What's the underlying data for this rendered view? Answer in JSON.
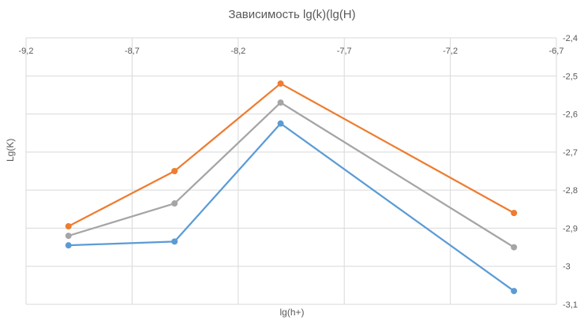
{
  "chart_data": {
    "type": "line",
    "title": "Зависимость lg(k)(lg(H)",
    "xlabel": "lg(h+)",
    "ylabel": "Lg(K)",
    "x": [
      -9.0,
      -8.5,
      -8.0,
      -6.9
    ],
    "xlim": [
      -9.2,
      -6.7
    ],
    "ylim": [
      -3.1,
      -2.4
    ],
    "x_ticks": [
      -9.2,
      -8.7,
      -8.2,
      -7.7,
      -7.2,
      -6.7
    ],
    "x_tick_labels": [
      "-9,2",
      "-8,7",
      "-8,2",
      "-7,7",
      "-7,2",
      "-6,7"
    ],
    "y_ticks": [
      -2.4,
      -2.5,
      -2.6,
      -2.7,
      -2.8,
      -2.9,
      -3.0,
      -3.1
    ],
    "y_tick_labels": [
      "-2,4",
      "-2,5",
      "-2,6",
      "-2,7",
      "-2,8",
      "-2,9",
      "-3",
      "-3,1"
    ],
    "x_axis_position": "top",
    "y_axis_position": "right",
    "grid": true,
    "legend": "none",
    "series": [
      {
        "color": "#5B9BD5",
        "values": [
          -2.945,
          -2.935,
          -2.625,
          -3.065
        ]
      },
      {
        "color": "#ED7D31",
        "values": [
          -2.895,
          -2.75,
          -2.52,
          -2.86
        ]
      },
      {
        "color": "#A5A5A5",
        "values": [
          -2.92,
          -2.835,
          -2.57,
          -2.95
        ]
      }
    ]
  }
}
